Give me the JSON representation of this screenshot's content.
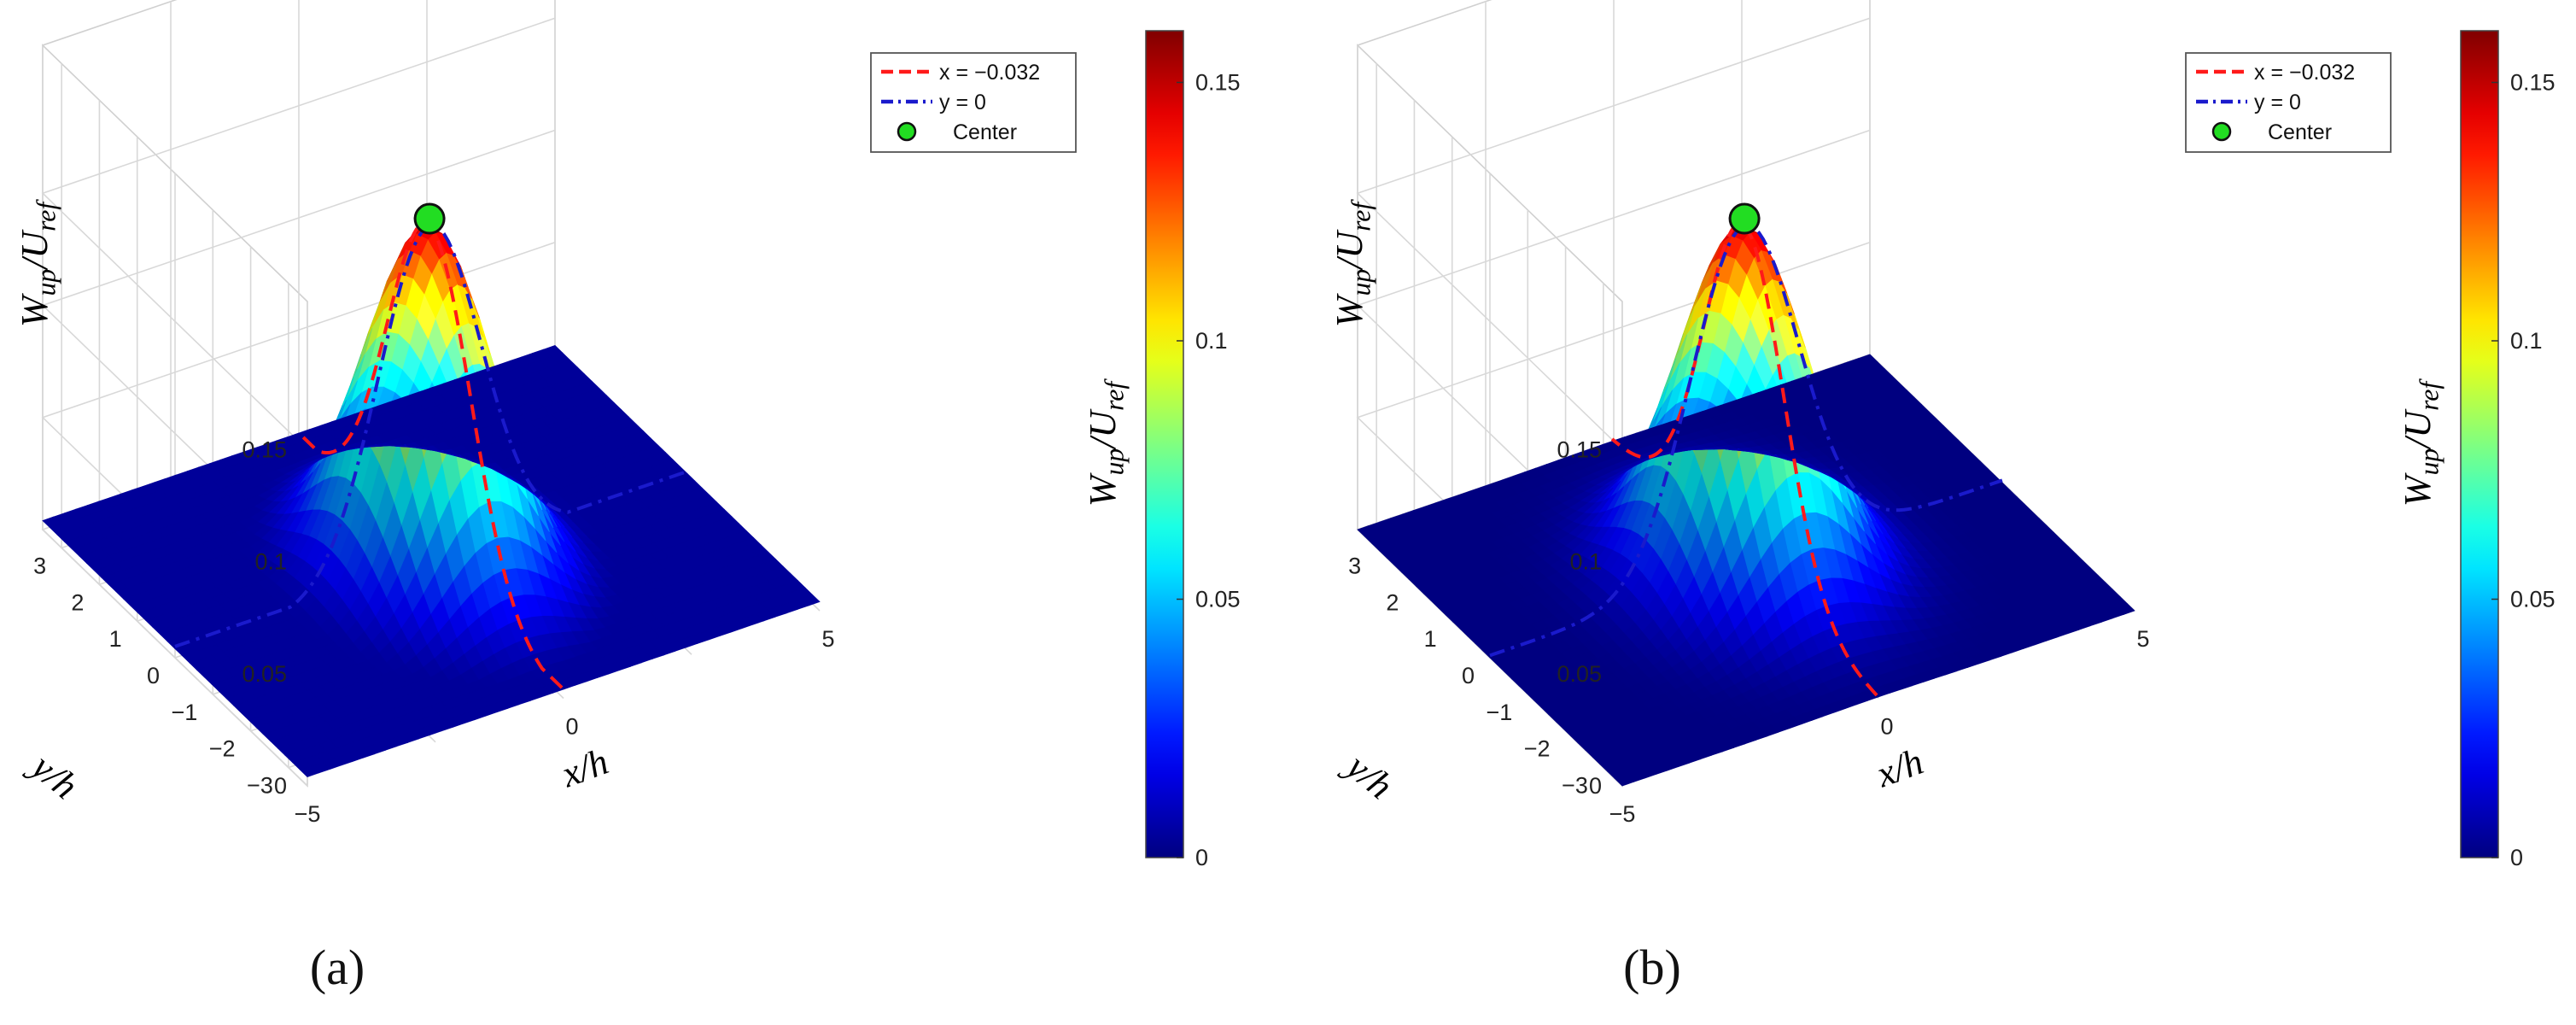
{
  "chart_data": [
    {
      "type": "surface",
      "panel_label": "(a)",
      "xlabel": "x/h",
      "ylabel": "y/h",
      "zlabel": "W_up/U_ref",
      "colorbar_label": "W_up/U_ref",
      "x_ticks": [
        "−5",
        "0",
        "5"
      ],
      "y_ticks": [
        "3",
        "2",
        "1",
        "0",
        "−1",
        "−2",
        "−3"
      ],
      "z_ticks": [
        "0",
        "0.05",
        "0.1",
        "0.15"
      ],
      "colorbar_ticks": [
        "0",
        "0.05",
        "0.1",
        "0.15"
      ],
      "xlim": [
        -5,
        5
      ],
      "ylim": [
        -3.5,
        3.5
      ],
      "zlim": [
        0,
        0.16
      ],
      "colormap": "jet",
      "grid": true,
      "legend_position": "top-right",
      "legend": [
        {
          "label": "x = −0.032",
          "color": "#ff1a1a",
          "style": "dashed"
        },
        {
          "label": "y = 0",
          "color": "#1a1acc",
          "style": "dash-dot"
        },
        {
          "label": "Center",
          "color": "#22dd22",
          "style": "marker"
        }
      ],
      "peak": {
        "x": -0.032,
        "y": 0,
        "z": 0.153
      },
      "surface": {
        "amplitude": 0.153,
        "sigma_x": 1.0,
        "sigma_y": 1.1,
        "base": 0.004,
        "slope_y": 0.0
      }
    },
    {
      "type": "surface",
      "panel_label": "(b)",
      "xlabel": "x/h",
      "ylabel": "y/h",
      "zlabel": "W_up/U_ref",
      "colorbar_label": "W_up/U_ref",
      "x_ticks": [
        "−5",
        "0",
        "5"
      ],
      "y_ticks": [
        "3",
        "2",
        "1",
        "0",
        "−1",
        "−2",
        "−3"
      ],
      "z_ticks": [
        "0",
        "0.05",
        "0.1",
        "0.15"
      ],
      "colorbar_ticks": [
        "0",
        "0.05",
        "0.1",
        "0.15"
      ],
      "xlim": [
        -5,
        5
      ],
      "ylim": [
        -3.5,
        3.5
      ],
      "zlim": [
        0,
        0.16
      ],
      "colormap": "jet",
      "grid": true,
      "legend_position": "top-right",
      "legend": [
        {
          "label": "x = −0.032",
          "color": "#ff1a1a",
          "style": "dashed"
        },
        {
          "label": "y = 0",
          "color": "#1a1acc",
          "style": "dash-dot"
        },
        {
          "label": "Center",
          "color": "#22dd22",
          "style": "marker"
        }
      ],
      "peak": {
        "x": -0.032,
        "y": 0,
        "z": 0.153
      },
      "surface": {
        "amplitude": 0.153,
        "sigma_x": 1.05,
        "sigma_y": 1.05,
        "base": 0.0,
        "slope_y": 0.0
      }
    }
  ]
}
